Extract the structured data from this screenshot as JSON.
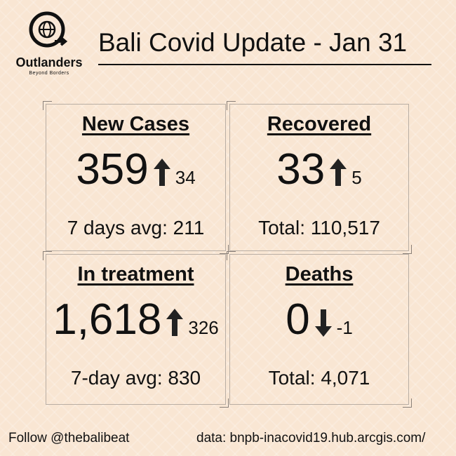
{
  "header": {
    "logo": {
      "name": "Outlanders",
      "tagline": "Beyond Borders"
    },
    "title": "Bali Covid Update - Jan 31"
  },
  "cards": [
    {
      "heading": "New Cases",
      "value": "359",
      "trend": "up",
      "change": "34",
      "footer": "7 days avg: 211"
    },
    {
      "heading": "Recovered",
      "value": "33",
      "trend": "up",
      "change": "5",
      "footer": "Total: 110,517"
    },
    {
      "heading": "In treatment",
      "value": "1,618",
      "trend": "up",
      "change": "326",
      "footer": "7-day avg: 830"
    },
    {
      "heading": "Deaths",
      "value": "0",
      "trend": "down",
      "change": "-1",
      "footer": "Total: 4,071"
    }
  ],
  "footer": {
    "follow": "Follow @thebalibeat",
    "source": "data: bnpb-inacovid19.hub.arcgis.com/"
  }
}
